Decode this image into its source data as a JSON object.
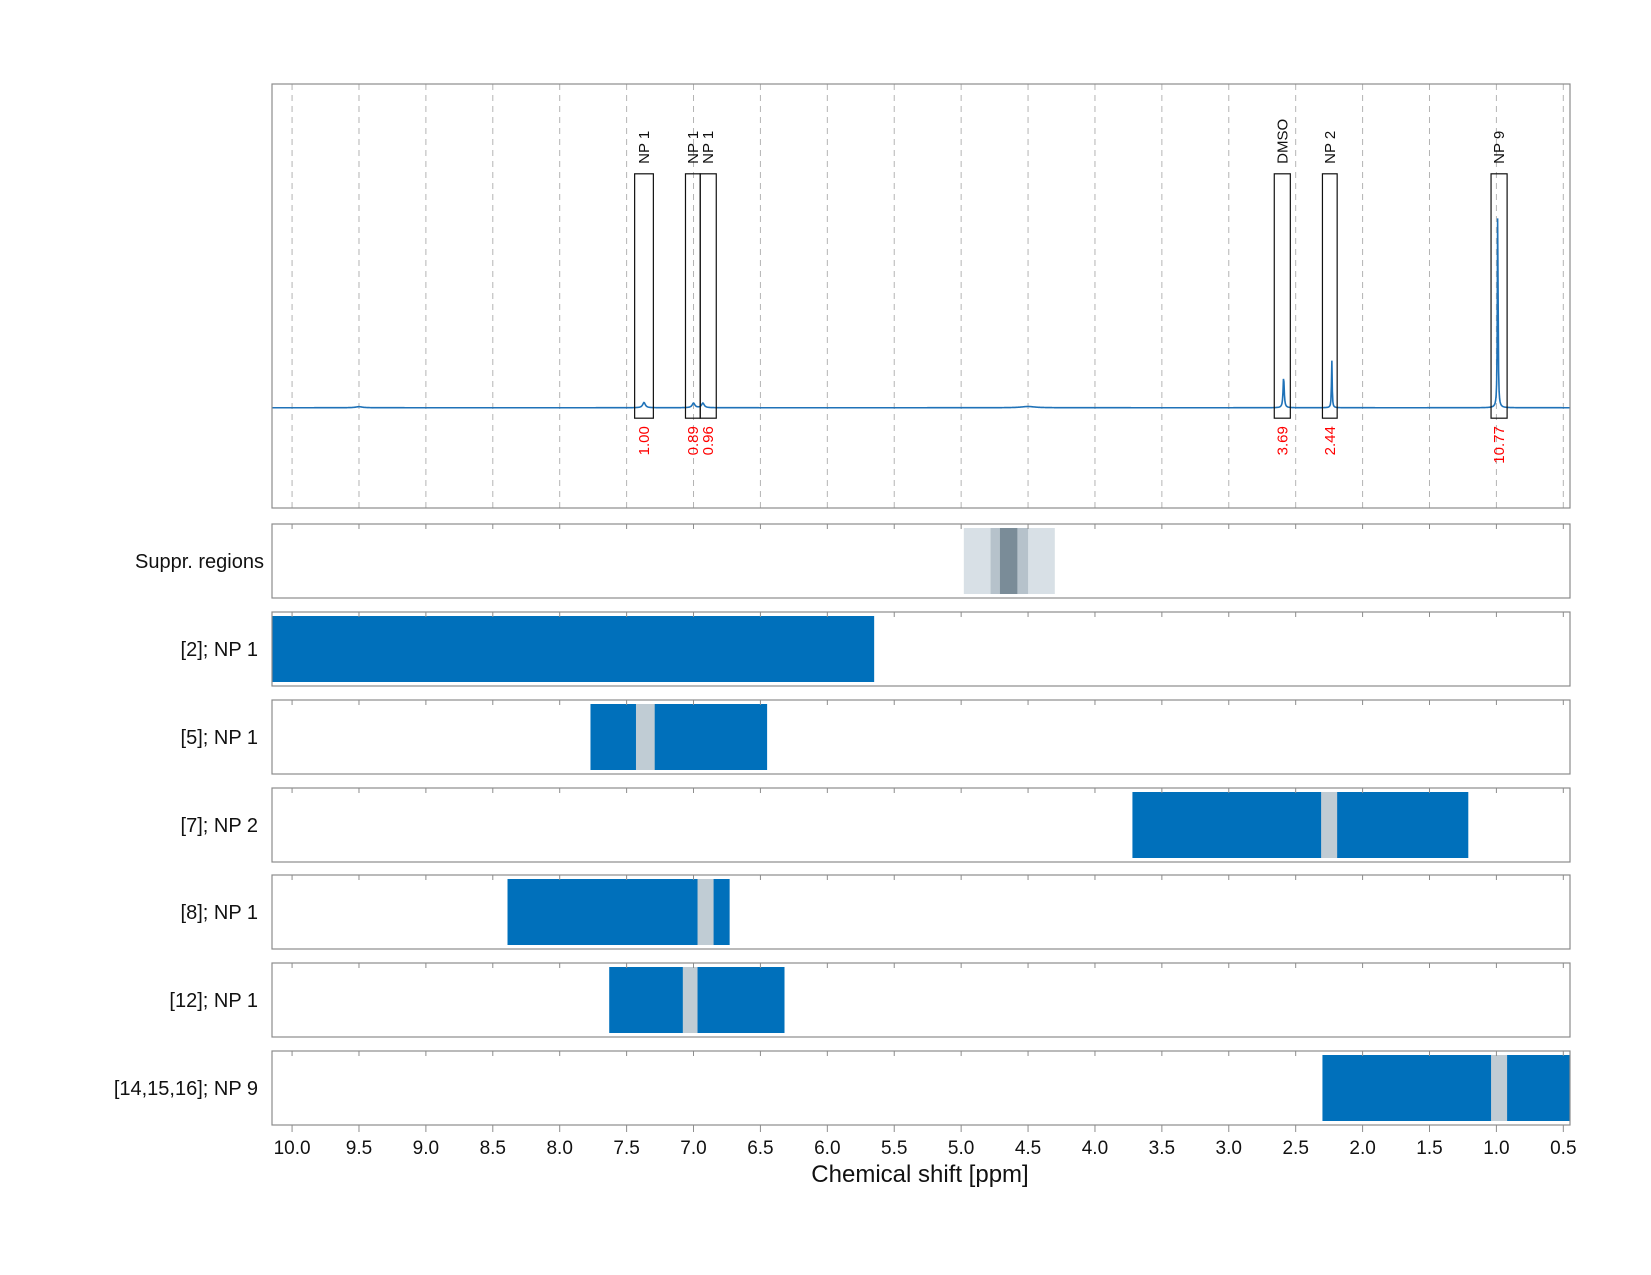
{
  "chart_data": {
    "type": "line",
    "xlabel": "Chemical shift [ppm]",
    "xlim": [
      10.15,
      0.45
    ],
    "x_ticks": [
      "10.0",
      "9.5",
      "9.0",
      "8.5",
      "8.0",
      "7.5",
      "7.0",
      "6.5",
      "6.0",
      "5.5",
      "5.0",
      "4.5",
      "4.0",
      "3.5",
      "3.0",
      "2.5",
      "2.0",
      "1.5",
      "1.0",
      "0.5"
    ],
    "grid": true,
    "colors": {
      "spectrum": "#1f72b8",
      "region_fill": "#0070bb",
      "excluded": "#c0ccd4",
      "suppr_light": "#d8e0e6",
      "suppr_mid": "#b6c2cb",
      "suppr_dark": "#7a8c98",
      "integral_text": "#ff0000"
    },
    "spectrum": {
      "baseline": 0,
      "ylim": [
        -0.48,
        1.55
      ],
      "peaks": [
        {
          "x": 9.5,
          "height": 0.005,
          "width": 0.03
        },
        {
          "x": 7.37,
          "height": 0.025,
          "width": 0.012
        },
        {
          "x": 7.0,
          "height": 0.022,
          "width": 0.012
        },
        {
          "x": 6.93,
          "height": 0.022,
          "width": 0.012
        },
        {
          "x": 4.5,
          "height": 0.006,
          "width": 0.06
        },
        {
          "x": 2.59,
          "height": 0.15,
          "width": 0.005
        },
        {
          "x": 2.23,
          "height": 0.23,
          "width": 0.003
        },
        {
          "x": 0.99,
          "height": 1.0,
          "width": 0.003
        }
      ]
    },
    "annotations": [
      {
        "label": "NP 1",
        "x_start": 7.44,
        "x_end": 7.3,
        "integral": "1.00"
      },
      {
        "label": "NP 1",
        "x_start": 7.06,
        "x_end": 6.95,
        "integral": "0.89"
      },
      {
        "label": "NP 1",
        "x_start": 6.95,
        "x_end": 6.83,
        "integral": "0.96"
      },
      {
        "label": "DMSO",
        "x_start": 2.66,
        "x_end": 2.54,
        "integral": "3.69"
      },
      {
        "label": "NP 2",
        "x_start": 2.3,
        "x_end": 2.19,
        "integral": "2.44"
      },
      {
        "label": "NP 9",
        "x_start": 1.04,
        "x_end": 0.92,
        "integral": "10.77"
      }
    ],
    "suppressed": {
      "label": "Suppr. regions",
      "layers": [
        {
          "x_start": 4.98,
          "x_end": 4.3,
          "level": "light"
        },
        {
          "x_start": 4.78,
          "x_end": 4.5,
          "level": "mid"
        },
        {
          "x_start": 4.71,
          "x_end": 4.58,
          "level": "dark"
        }
      ]
    },
    "rows": [
      {
        "label": "[2]; NP 1",
        "x_start": 10.15,
        "x_end": 5.65,
        "excluded": []
      },
      {
        "label": "[5]; NP 1",
        "x_start": 7.77,
        "x_end": 6.45,
        "excluded": [
          [
            7.43,
            7.29
          ]
        ]
      },
      {
        "label": "[7]; NP 2",
        "x_start": 3.72,
        "x_end": 1.21,
        "excluded": [
          [
            2.31,
            2.19
          ]
        ]
      },
      {
        "label": "[8]; NP 1",
        "x_start": 8.39,
        "x_end": 6.73,
        "excluded": [
          [
            6.97,
            6.85
          ]
        ]
      },
      {
        "label": "[12]; NP 1",
        "x_start": 7.63,
        "x_end": 6.32,
        "excluded": [
          [
            7.08,
            6.97
          ]
        ]
      },
      {
        "label": "[14,15,16]; NP 9",
        "x_start": 2.3,
        "x_end": 0.45,
        "excluded": [
          [
            1.04,
            0.92
          ]
        ]
      }
    ]
  }
}
